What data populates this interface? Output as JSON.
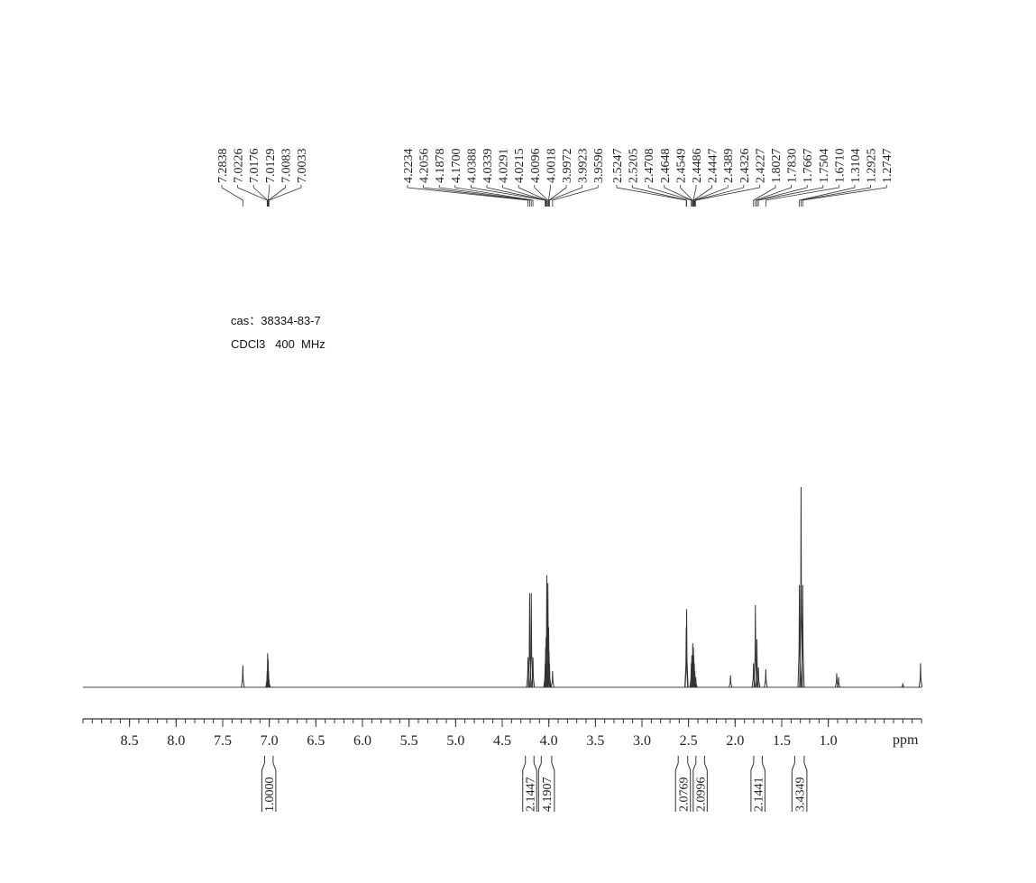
{
  "chart_data": {
    "type": "nmr",
    "annotations": [
      "cas：38334-83-7",
      "CDCl3   400  MHz"
    ],
    "x_label": "ppm",
    "xlim": [
      9.0,
      0.0
    ],
    "xticks": [
      8.5,
      {
        "value": 8,
        "label": "8.0"
      },
      7.5,
      {
        "value": 7,
        "label": "7.0"
      },
      6.5,
      {
        "value": 6,
        "label": "6.0"
      },
      5.5,
      {
        "value": 5,
        "label": "5.0"
      },
      4.5,
      {
        "value": 4,
        "label": "4.0"
      },
      3.5,
      {
        "value": 3,
        "label": "3.0"
      },
      2.5,
      {
        "value": 2,
        "label": "2.0"
      },
      1.5,
      {
        "value": 1,
        "label": "1.0"
      }
    ],
    "minor_xticks": [
      9,
      8.9,
      8.8,
      8.7,
      8.6,
      8.5,
      8.4,
      8.3,
      8.2,
      8.1,
      8,
      7.9,
      7.8,
      7.7,
      7.6,
      7.5,
      7.4,
      7.3,
      7.2,
      7.1,
      7,
      6.9,
      6.8,
      6.7,
      6.6,
      6.5,
      6.4,
      6.3,
      6.2,
      6.1,
      6,
      5.9,
      5.8,
      5.7,
      5.6,
      5.5,
      5.4,
      5.3,
      5.2,
      5.1,
      5,
      4.9,
      4.8,
      4.7,
      4.6,
      4.5,
      4.4,
      4.3,
      4.2,
      4.1,
      4,
      3.9,
      3.8,
      3.7,
      3.6,
      3.5,
      3.4,
      3.3,
      3.2,
      3.1,
      3,
      2.9,
      2.8,
      2.7,
      2.6,
      2.5,
      2.4,
      2.3,
      2.2,
      2.1,
      2,
      1.9,
      1.8,
      1.7,
      1.6,
      1.5,
      1.4,
      1.3,
      1.2,
      1.1,
      1,
      0.9,
      0.8,
      0.7,
      0.6,
      0.5,
      0.4,
      0.3,
      0.2,
      0.1,
      0
    ],
    "peaks": {
      "ppm": [
        7.2838,
        7.0226,
        7.0176,
        7.0129,
        7.0083,
        7.0033,
        4.2234,
        4.2056,
        4.1878,
        {
          "value": 4.17,
          "label": "4.1700"
        },
        4.0388,
        4.0339,
        4.0291,
        4.0215,
        4.0096,
        4.0018,
        3.9972,
        3.9923,
        3.9596,
        2.5247,
        2.5205,
        2.4708,
        2.4648,
        2.4549,
        2.4486,
        2.4447,
        2.4389,
        2.4326,
        2.4227,
        1.8027,
        {
          "value": 1.783,
          "label": "1.7830"
        },
        1.7667,
        1.7504,
        {
          "value": 1.671,
          "label": "1.6710"
        },
        1.3104,
        1.2925,
        1.2747
      ],
      "intensity": [
        11,
        8,
        17,
        14,
        8,
        4,
        15,
        47,
        47,
        15,
        12,
        20,
        25,
        56,
        52,
        30,
        18,
        12,
        8,
        30,
        39,
        12,
        16,
        22,
        20,
        16,
        12,
        8,
        5,
        12,
        41,
        24,
        10,
        9,
        51,
        100,
        51
      ]
    },
    "minor_peaks": {
      "ppm": [
        2.05,
        0.91,
        0.89,
        0.2,
        0.01
      ],
      "intensity": [
        6,
        7,
        5,
        2,
        12
      ]
    },
    "integrals": {
      "ranges": [
        [
          7.08,
          6.93
        ],
        [
          4.28,
          4.13
        ],
        [
          4.11,
          3.94
        ],
        [
          2.64,
          2.48
        ],
        [
          2.45,
          2.3
        ],
        [
          1.83,
          1.68
        ],
        [
          1.39,
          1.23
        ]
      ],
      "values": [
        {
          "value": 1,
          "label": "1.0000"
        },
        2.1447,
        4.1907,
        2.0769,
        2.0996,
        2.1441,
        3.4349
      ]
    }
  }
}
